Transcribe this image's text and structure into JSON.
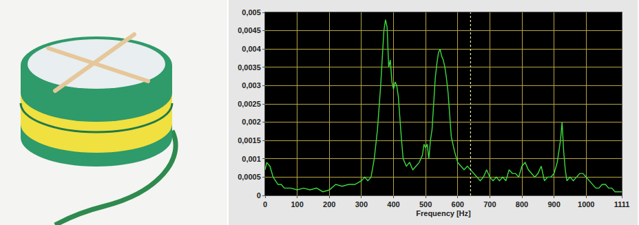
{
  "chart_data": {
    "type": "line",
    "x_label": "Frequency [Hz]",
    "x": [
      0,
      5,
      15,
      25,
      40,
      50,
      60,
      80,
      100,
      120,
      140,
      160,
      180,
      200,
      220,
      240,
      260,
      280,
      300,
      310,
      320,
      330,
      340,
      350,
      360,
      365,
      370,
      375,
      380,
      385,
      390,
      395,
      400,
      405,
      410,
      415,
      420,
      425,
      430,
      440,
      450,
      460,
      470,
      480,
      490,
      495,
      500,
      505,
      510,
      515,
      520,
      525,
      530,
      535,
      540,
      545,
      550,
      555,
      560,
      565,
      570,
      575,
      580,
      590,
      600,
      610,
      620,
      630,
      640,
      650,
      660,
      670,
      680,
      690,
      700,
      710,
      720,
      730,
      740,
      750,
      760,
      770,
      780,
      790,
      800,
      810,
      820,
      830,
      840,
      850,
      860,
      870,
      880,
      890,
      900,
      910,
      920,
      925,
      930,
      935,
      940,
      950,
      960,
      970,
      980,
      990,
      1000,
      1010,
      1020,
      1030,
      1040,
      1050,
      1060,
      1070,
      1080,
      1090,
      1100,
      1111
    ],
    "values": [
      0.0007,
      0.0009,
      0.0008,
      0.0005,
      0.0003,
      0.0003,
      0.0002,
      0.0002,
      0.00015,
      0.0002,
      0.00015,
      0.0002,
      0.0001,
      0.00015,
      0.0003,
      0.00025,
      0.0003,
      0.0003,
      0.0004,
      0.0005,
      0.0004,
      0.0005,
      0.001,
      0.0018,
      0.003,
      0.0038,
      0.0045,
      0.0048,
      0.0046,
      0.0035,
      0.0037,
      0.0031,
      0.0029,
      0.0031,
      0.003,
      0.0027,
      0.002,
      0.0015,
      0.001,
      0.0008,
      0.0009,
      0.0007,
      0.0008,
      0.0009,
      0.0011,
      0.0014,
      0.0013,
      0.0014,
      0.001,
      0.0015,
      0.0018,
      0.0025,
      0.0032,
      0.0036,
      0.0039,
      0.004,
      0.0038,
      0.0037,
      0.0035,
      0.0032,
      0.0028,
      0.0022,
      0.0016,
      0.0012,
      0.0009,
      0.0008,
      0.0007,
      0.0008,
      0.0007,
      0.0006,
      0.0005,
      0.0004,
      0.0005,
      0.0007,
      0.0005,
      0.0004,
      0.0005,
      0.0004,
      0.0005,
      0.0004,
      0.0007,
      0.0006,
      0.0006,
      0.0005,
      0.0008,
      0.0009,
      0.0007,
      0.0006,
      0.0005,
      0.0006,
      0.0008,
      0.0004,
      0.0005,
      0.0005,
      0.0006,
      0.0009,
      0.0015,
      0.002,
      0.0012,
      0.0007,
      0.0004,
      0.0005,
      0.0004,
      0.0005,
      0.0006,
      0.0006,
      0.0005,
      0.0004,
      0.0003,
      0.0002,
      0.0002,
      0.0003,
      0.0003,
      0.0002,
      0.0002,
      0.0001,
      0.0001,
      0.0001
    ],
    "color": "#3ddc3d",
    "cursor_x": 640,
    "xlim": [
      0,
      1111
    ],
    "xticks": [
      0,
      100,
      200,
      300,
      400,
      500,
      600,
      700,
      800,
      900,
      1000,
      1111
    ],
    "ylim": [
      0,
      0.005
    ],
    "yticks": [
      0,
      {
        "value": 0.0005,
        "label": "0,0005"
      },
      {
        "value": 0.001,
        "label": "0,001"
      },
      {
        "value": 0.0015,
        "label": "0,0015"
      },
      {
        "value": 0.002,
        "label": "0,002"
      },
      {
        "value": 0.0025,
        "label": "0,0025"
      },
      {
        "value": 0.003,
        "label": "0,003"
      },
      {
        "value": 0.0035,
        "label": "0,0035"
      },
      {
        "value": 0.004,
        "label": "0,004"
      },
      {
        "value": 0.0045,
        "label": "0,0045"
      },
      {
        "value": 0.005,
        "label": "0,005"
      }
    ],
    "grid": true
  }
}
